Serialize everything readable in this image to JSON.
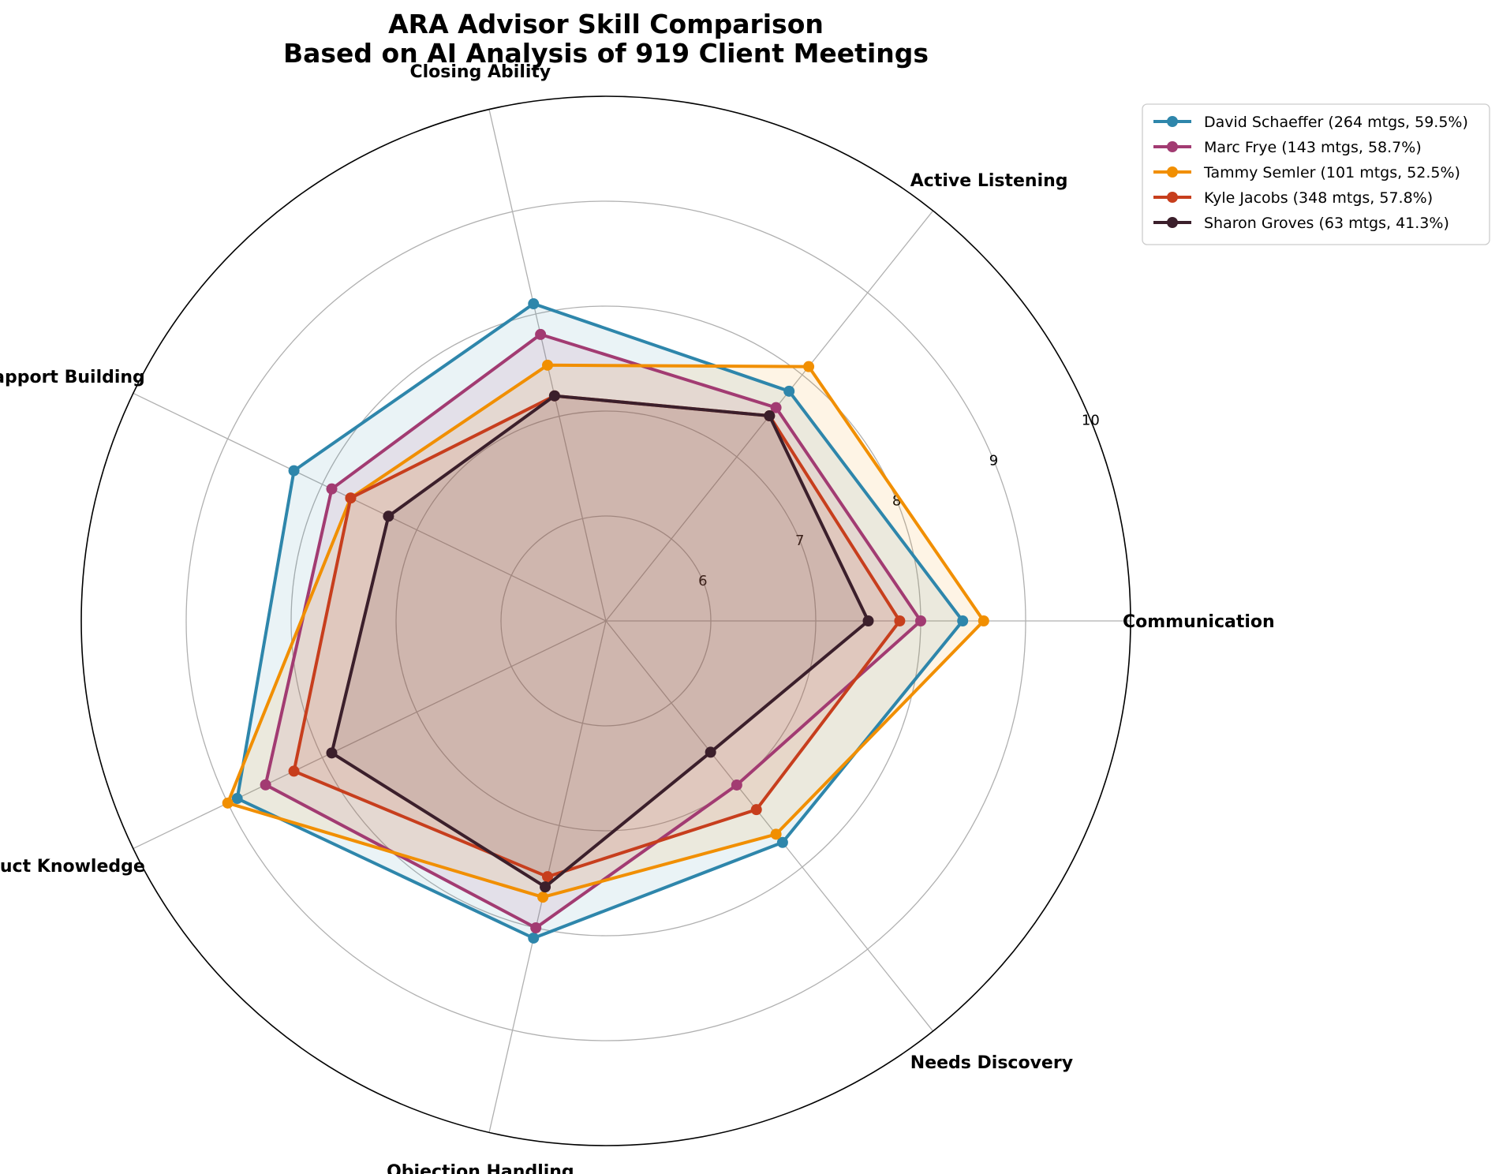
{
  "chart_data": {
    "type": "radar",
    "title": "ARA Advisor Skill Comparison",
    "subtitle": "Based on AI Analysis of 919 Client Meetings",
    "axes": [
      "Communication",
      "Active Listening",
      "Closing Ability",
      "Rapport Building",
      "Product Knowledge",
      "Objection Handling",
      "Needs Discovery"
    ],
    "rlim": [
      5,
      10
    ],
    "r_ticks": [
      6,
      7,
      8,
      9,
      10
    ],
    "r_tick_labels": [
      "6",
      "7",
      "8",
      "9",
      "10"
    ],
    "grid": true,
    "legend_position": "outside-top-right",
    "series": [
      {
        "name": "David Schaeffer (264 mtgs, 59.5%)",
        "color": "#2e86ab",
        "values": [
          8.4,
          7.8,
          8.1,
          8.3,
          8.9,
          8.1,
          7.7
        ]
      },
      {
        "name": "Marc Frye (143 mtgs, 58.7%)",
        "color": "#a23b72",
        "values": [
          8.0,
          7.6,
          7.8,
          7.9,
          8.6,
          8.0,
          7.0
        ]
      },
      {
        "name": "Tammy Semler (101 mtgs, 52.5%)",
        "color": "#f18f01",
        "values": [
          8.6,
          8.1,
          7.5,
          7.7,
          9.0,
          7.7,
          7.6
        ]
      },
      {
        "name": "Kyle Jacobs (348 mtgs, 57.8%)",
        "color": "#c73e1d",
        "values": [
          7.8,
          7.5,
          7.2,
          7.7,
          8.3,
          7.5,
          7.3
        ]
      },
      {
        "name": "Sharon Groves (63 mtgs, 41.3%)",
        "color": "#3b1f2b",
        "values": [
          7.5,
          7.5,
          7.2,
          7.3,
          7.9,
          7.6,
          6.6
        ]
      }
    ]
  }
}
